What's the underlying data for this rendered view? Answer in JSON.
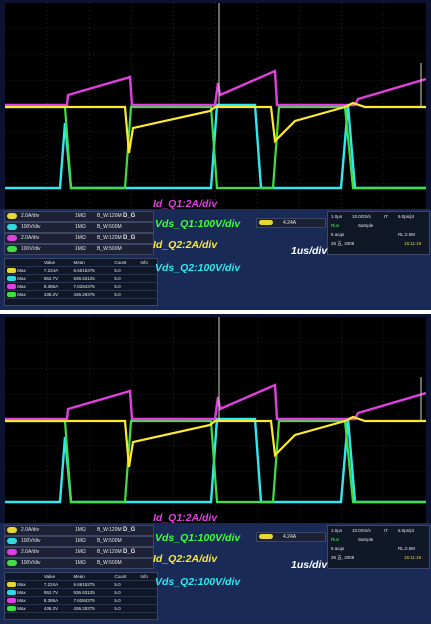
{
  "panels": [
    {
      "labels": {
        "id_q1": "Id_Q1:2A/div",
        "vds_q1": "Vds_Q1:100V/div",
        "id_q2": "Id_Q2:2A/div",
        "time": "1us/div",
        "vds_q2": "Vds_Q2:100V/div"
      },
      "channels": [
        {
          "vdiv": "2.0A/div",
          "imp": "1MΩ",
          "bw": "B_W:120M",
          "dg": "D_G",
          "color": "#e6d830"
        },
        {
          "vdiv": "100V/div",
          "imp": "1MΩ",
          "bw": "B_W:500M",
          "dg": "",
          "color": "#30d8e0"
        },
        {
          "vdiv": "2.0A/div",
          "imp": "1MΩ",
          "bw": "B_W:120M",
          "dg": "D_G",
          "color": "#e040e0"
        },
        {
          "vdiv": "100V/div",
          "imp": "1MΩ",
          "bw": "B_W:500M",
          "dg": "",
          "color": "#40e040"
        }
      ],
      "trigger": {
        "value": "4.24A"
      },
      "horizontal": {
        "time_div": "1.0μs",
        "sample_rate": "10.0GS/s",
        "it": "IT",
        "pt": "5.0ps/pt",
        "run": "Run",
        "mode": "Sample",
        "acqs": "5 acqs",
        "rl": "RL:2.0M",
        "date": "26 五, 2009",
        "clock": "15:11:19"
      },
      "measurements": {
        "headers": [
          "",
          "Value",
          "Mean",
          "Count",
          "Info"
        ],
        "rows": [
          {
            "name": "Max",
            "value": "7.224A",
            "mean": "6.6615375",
            "count": "5.0",
            "color": "#e6d830"
          },
          {
            "name": "Max",
            "value": "552.7V",
            "mean": "536.63125",
            "count": "5.0",
            "color": "#30d8e0"
          },
          {
            "name": "Max",
            "value": "8.386A",
            "mean": "7.6284375",
            "count": "5.0",
            "color": "#e040e0"
          },
          {
            "name": "Max",
            "value": "436.2V",
            "mean": "436.29375",
            "count": "5.0",
            "color": "#40e040"
          }
        ]
      }
    },
    {
      "labels": {
        "id_q1": "Id_Q1:2A/div",
        "vds_q1": "Vds_Q1:100V/div",
        "id_q2": "Id_Q2:2A/div",
        "time": "1us/div",
        "vds_q2": "Vds_Q2:100V/div"
      },
      "channels": [
        {
          "vdiv": "2.0A/div",
          "imp": "1MΩ",
          "bw": "B_W:120M",
          "dg": "D_G",
          "color": "#e6d830"
        },
        {
          "vdiv": "100V/div",
          "imp": "1MΩ",
          "bw": "B_W:500M",
          "dg": "",
          "color": "#30d8e0"
        },
        {
          "vdiv": "2.0A/div",
          "imp": "1MΩ",
          "bw": "B_W:120M",
          "dg": "D_G",
          "color": "#e040e0"
        },
        {
          "vdiv": "100V/div",
          "imp": "1MΩ",
          "bw": "B_W:500M",
          "dg": "",
          "color": "#40e040"
        }
      ],
      "trigger": {
        "value": "4.24A"
      },
      "horizontal": {
        "time_div": "1.0μs",
        "sample_rate": "10.0GS/s",
        "it": "IT",
        "pt": "5.0ps/pt",
        "run": "Run",
        "mode": "Sample",
        "acqs": "5 acqs",
        "rl": "RL:2.0M",
        "date": "26 五, 2009",
        "clock": "15:11:19"
      },
      "measurements": {
        "headers": [
          "",
          "Value",
          "Mean",
          "Count",
          "Info"
        ],
        "rows": [
          {
            "name": "Max",
            "value": "7.224A",
            "mean": "6.6615375",
            "count": "5.0",
            "color": "#e6d830"
          },
          {
            "name": "Max",
            "value": "552.7V",
            "mean": "536.63125",
            "count": "5.0",
            "color": "#30d8e0"
          },
          {
            "name": "Max",
            "value": "8.386A",
            "mean": "7.6284375",
            "count": "5.0",
            "color": "#e040e0"
          },
          {
            "name": "Max",
            "value": "436.2V",
            "mean": "436.29375",
            "count": "5.0",
            "color": "#40e040"
          }
        ]
      }
    }
  ],
  "colors": {
    "id_q1": "#e040e0",
    "vds_q1": "#40e040",
    "id_q2": "#ffe830",
    "vds_q2": "#30e8f0"
  }
}
